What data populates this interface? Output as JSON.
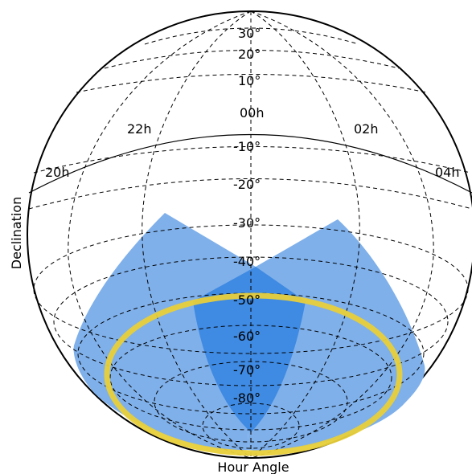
{
  "figure": {
    "ylabel": "Declination",
    "xlabel": "Hour Angle"
  },
  "hour_labels": [
    {
      "text": "22h",
      "ha": -2
    },
    {
      "text": "00h",
      "ha": 0
    },
    {
      "text": "02h",
      "ha": 2
    },
    {
      "text": "20h",
      "ha": -4
    },
    {
      "text": "04h",
      "ha": 4
    }
  ],
  "dec_labels": [
    {
      "text": "30°",
      "dec": 30
    },
    {
      "text": "20°",
      "dec": 20
    },
    {
      "text": "10°",
      "dec": 10
    },
    {
      "text": "-10°",
      "dec": -10
    },
    {
      "text": "-20°",
      "dec": -20
    },
    {
      "text": "-30°",
      "dec": -30
    },
    {
      "text": "-40°",
      "dec": -40
    },
    {
      "text": "-50°",
      "dec": -50
    },
    {
      "text": "-60°",
      "dec": -60
    },
    {
      "text": "-70°",
      "dec": -70
    },
    {
      "text": "-80°",
      "dec": -80
    }
  ],
  "colors": {
    "fov_light": "#7fb0ea",
    "fov_overlap": "#3f8ae2",
    "horizon_ring": "#e8cf3a",
    "grid": "#000000"
  }
}
